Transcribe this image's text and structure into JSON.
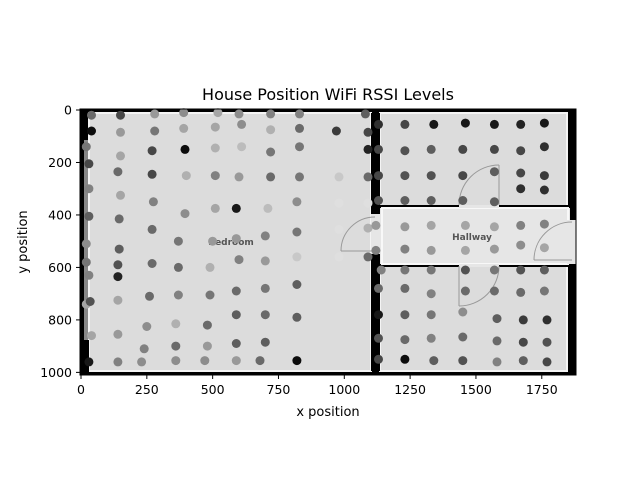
{
  "chart_data": {
    "type": "scatter",
    "title": "House Position WiFi RSSI Levels",
    "xlabel": "x position",
    "ylabel": "y position",
    "xlim": [
      0,
      1880
    ],
    "ylim": [
      1010,
      0
    ],
    "y_inverted": true,
    "xticks": [
      "0",
      "250",
      "500",
      "750",
      "1000",
      "1250",
      "1500",
      "1750"
    ],
    "yticks": [
      "0",
      "200",
      "400",
      "600",
      "800",
      "1000"
    ],
    "background_image": "house floor plan (grayscale)",
    "room_labels": [
      "Bedroom",
      "Hallway"
    ],
    "color_scale": "grayscale: darker = stronger signal (value 0 = black, 1 = white)",
    "points": [
      {
        "x": 40,
        "y": 20,
        "v": 0.45
      },
      {
        "x": 150,
        "y": 20,
        "v": 0.3
      },
      {
        "x": 280,
        "y": 15,
        "v": 0.65
      },
      {
        "x": 390,
        "y": 10,
        "v": 0.6
      },
      {
        "x": 520,
        "y": 10,
        "v": 0.7
      },
      {
        "x": 600,
        "y": 15,
        "v": 0.6
      },
      {
        "x": 720,
        "y": 15,
        "v": 0.55
      },
      {
        "x": 830,
        "y": 15,
        "v": 0.55
      },
      {
        "x": 1080,
        "y": 15,
        "v": 0.4
      },
      {
        "x": 40,
        "y": 80,
        "v": 0.05
      },
      {
        "x": 150,
        "y": 85,
        "v": 0.65
      },
      {
        "x": 280,
        "y": 80,
        "v": 0.5
      },
      {
        "x": 390,
        "y": 70,
        "v": 0.7
      },
      {
        "x": 510,
        "y": 65,
        "v": 0.7
      },
      {
        "x": 610,
        "y": 55,
        "v": 0.6
      },
      {
        "x": 720,
        "y": 75,
        "v": 0.75
      },
      {
        "x": 830,
        "y": 70,
        "v": 0.45
      },
      {
        "x": 970,
        "y": 80,
        "v": 0.25
      },
      {
        "x": 1090,
        "y": 85,
        "v": 0.3
      },
      {
        "x": 20,
        "y": 140,
        "v": 0.5
      },
      {
        "x": 150,
        "y": 175,
        "v": 0.7
      },
      {
        "x": 270,
        "y": 155,
        "v": 0.3
      },
      {
        "x": 395,
        "y": 150,
        "v": 0.05
      },
      {
        "x": 510,
        "y": 145,
        "v": 0.75
      },
      {
        "x": 610,
        "y": 140,
        "v": 0.8
      },
      {
        "x": 720,
        "y": 160,
        "v": 0.5
      },
      {
        "x": 830,
        "y": 140,
        "v": 0.5
      },
      {
        "x": 1090,
        "y": 150,
        "v": 0.15
      },
      {
        "x": 30,
        "y": 205,
        "v": 0.3
      },
      {
        "x": 140,
        "y": 235,
        "v": 0.45
      },
      {
        "x": 270,
        "y": 245,
        "v": 0.3
      },
      {
        "x": 400,
        "y": 250,
        "v": 0.75
      },
      {
        "x": 510,
        "y": 250,
        "v": 0.55
      },
      {
        "x": 600,
        "y": 255,
        "v": 0.65
      },
      {
        "x": 720,
        "y": 255,
        "v": 0.45
      },
      {
        "x": 830,
        "y": 255,
        "v": 0.5
      },
      {
        "x": 980,
        "y": 255,
        "v": 0.85
      },
      {
        "x": 1090,
        "y": 255,
        "v": 0.45
      },
      {
        "x": 30,
        "y": 300,
        "v": 0.55
      },
      {
        "x": 150,
        "y": 325,
        "v": 0.7
      },
      {
        "x": 275,
        "y": 350,
        "v": 0.55
      },
      {
        "x": 395,
        "y": 395,
        "v": 0.6
      },
      {
        "x": 510,
        "y": 375,
        "v": 0.7
      },
      {
        "x": 590,
        "y": 375,
        "v": 0.1
      },
      {
        "x": 710,
        "y": 375,
        "v": 0.8
      },
      {
        "x": 820,
        "y": 350,
        "v": 0.6
      },
      {
        "x": 980,
        "y": 355,
        "v": 0.95
      },
      {
        "x": 1090,
        "y": 355,
        "v": 0.95
      },
      {
        "x": 30,
        "y": 405,
        "v": 0.4
      },
      {
        "x": 145,
        "y": 415,
        "v": 0.45
      },
      {
        "x": 270,
        "y": 455,
        "v": 0.45
      },
      {
        "x": 370,
        "y": 500,
        "v": 0.5
      },
      {
        "x": 500,
        "y": 500,
        "v": 0.65
      },
      {
        "x": 590,
        "y": 490,
        "v": 0.65
      },
      {
        "x": 700,
        "y": 480,
        "v": 0.55
      },
      {
        "x": 820,
        "y": 465,
        "v": 0.5
      },
      {
        "x": 980,
        "y": 455,
        "v": 0.95
      },
      {
        "x": 1090,
        "y": 450,
        "v": 0.75
      },
      {
        "x": 20,
        "y": 510,
        "v": 0.6
      },
      {
        "x": 145,
        "y": 530,
        "v": 0.4
      },
      {
        "x": 270,
        "y": 585,
        "v": 0.45
      },
      {
        "x": 370,
        "y": 600,
        "v": 0.45
      },
      {
        "x": 490,
        "y": 600,
        "v": 0.75
      },
      {
        "x": 600,
        "y": 570,
        "v": 0.55
      },
      {
        "x": 700,
        "y": 575,
        "v": 0.65
      },
      {
        "x": 820,
        "y": 560,
        "v": 0.85
      },
      {
        "x": 980,
        "y": 560,
        "v": 0.95
      },
      {
        "x": 1090,
        "y": 560,
        "v": 0.45
      },
      {
        "x": 20,
        "y": 580,
        "v": 0.5
      },
      {
        "x": 30,
        "y": 630,
        "v": 0.55
      },
      {
        "x": 140,
        "y": 590,
        "v": 0.35
      },
      {
        "x": 140,
        "y": 635,
        "v": 0.15
      },
      {
        "x": 20,
        "y": 740,
        "v": 0.7
      },
      {
        "x": 35,
        "y": 730,
        "v": 0.35
      },
      {
        "x": 140,
        "y": 725,
        "v": 0.7
      },
      {
        "x": 260,
        "y": 710,
        "v": 0.45
      },
      {
        "x": 370,
        "y": 705,
        "v": 0.55
      },
      {
        "x": 490,
        "y": 705,
        "v": 0.5
      },
      {
        "x": 590,
        "y": 690,
        "v": 0.45
      },
      {
        "x": 700,
        "y": 680,
        "v": 0.5
      },
      {
        "x": 820,
        "y": 665,
        "v": 0.4
      },
      {
        "x": 40,
        "y": 860,
        "v": 0.7
      },
      {
        "x": 140,
        "y": 855,
        "v": 0.65
      },
      {
        "x": 250,
        "y": 825,
        "v": 0.6
      },
      {
        "x": 360,
        "y": 815,
        "v": 0.75
      },
      {
        "x": 480,
        "y": 820,
        "v": 0.45
      },
      {
        "x": 590,
        "y": 780,
        "v": 0.4
      },
      {
        "x": 700,
        "y": 780,
        "v": 0.45
      },
      {
        "x": 820,
        "y": 790,
        "v": 0.4
      },
      {
        "x": 30,
        "y": 960,
        "v": 0.1
      },
      {
        "x": 140,
        "y": 960,
        "v": 0.55
      },
      {
        "x": 230,
        "y": 960,
        "v": 0.6
      },
      {
        "x": 240,
        "y": 910,
        "v": 0.55
      },
      {
        "x": 360,
        "y": 955,
        "v": 0.6
      },
      {
        "x": 360,
        "y": 900,
        "v": 0.45
      },
      {
        "x": 470,
        "y": 955,
        "v": 0.6
      },
      {
        "x": 480,
        "y": 900,
        "v": 0.65
      },
      {
        "x": 590,
        "y": 955,
        "v": 0.65
      },
      {
        "x": 590,
        "y": 890,
        "v": 0.4
      },
      {
        "x": 680,
        "y": 955,
        "v": 0.45
      },
      {
        "x": 700,
        "y": 885,
        "v": 0.4
      },
      {
        "x": 820,
        "y": 955,
        "v": 0.05
      },
      {
        "x": 1130,
        "y": 55,
        "v": 0.2
      },
      {
        "x": 1230,
        "y": 55,
        "v": 0.3
      },
      {
        "x": 1340,
        "y": 55,
        "v": 0.1
      },
      {
        "x": 1460,
        "y": 50,
        "v": 0.1
      },
      {
        "x": 1570,
        "y": 55,
        "v": 0.1
      },
      {
        "x": 1670,
        "y": 55,
        "v": 0.15
      },
      {
        "x": 1760,
        "y": 50,
        "v": 0.1
      },
      {
        "x": 1130,
        "y": 150,
        "v": 0.3
      },
      {
        "x": 1230,
        "y": 155,
        "v": 0.35
      },
      {
        "x": 1330,
        "y": 150,
        "v": 0.4
      },
      {
        "x": 1450,
        "y": 150,
        "v": 0.3
      },
      {
        "x": 1570,
        "y": 150,
        "v": 0.3
      },
      {
        "x": 1670,
        "y": 155,
        "v": 0.3
      },
      {
        "x": 1760,
        "y": 140,
        "v": 0.2
      },
      {
        "x": 1130,
        "y": 250,
        "v": 0.3
      },
      {
        "x": 1230,
        "y": 250,
        "v": 0.35
      },
      {
        "x": 1330,
        "y": 250,
        "v": 0.35
      },
      {
        "x": 1450,
        "y": 250,
        "v": 0.3
      },
      {
        "x": 1570,
        "y": 235,
        "v": 0.4
      },
      {
        "x": 1670,
        "y": 240,
        "v": 0.3
      },
      {
        "x": 1670,
        "y": 300,
        "v": 0.2
      },
      {
        "x": 1760,
        "y": 250,
        "v": 0.25
      },
      {
        "x": 1760,
        "y": 305,
        "v": 0.2
      },
      {
        "x": 1130,
        "y": 345,
        "v": 0.35
      },
      {
        "x": 1230,
        "y": 345,
        "v": 0.4
      },
      {
        "x": 1330,
        "y": 345,
        "v": 0.4
      },
      {
        "x": 1450,
        "y": 345,
        "v": 0.4
      },
      {
        "x": 1570,
        "y": 350,
        "v": 0.4
      },
      {
        "x": 1120,
        "y": 440,
        "v": 0.65
      },
      {
        "x": 1230,
        "y": 445,
        "v": 0.65
      },
      {
        "x": 1330,
        "y": 440,
        "v": 0.7
      },
      {
        "x": 1460,
        "y": 440,
        "v": 0.7
      },
      {
        "x": 1570,
        "y": 445,
        "v": 0.7
      },
      {
        "x": 1670,
        "y": 440,
        "v": 0.55
      },
      {
        "x": 1760,
        "y": 435,
        "v": 0.55
      },
      {
        "x": 1120,
        "y": 535,
        "v": 0.55
      },
      {
        "x": 1230,
        "y": 530,
        "v": 0.55
      },
      {
        "x": 1330,
        "y": 535,
        "v": 0.65
      },
      {
        "x": 1460,
        "y": 535,
        "v": 0.7
      },
      {
        "x": 1570,
        "y": 530,
        "v": 0.65
      },
      {
        "x": 1670,
        "y": 515,
        "v": 0.6
      },
      {
        "x": 1760,
        "y": 525,
        "v": 0.7
      },
      {
        "x": 1140,
        "y": 610,
        "v": 0.55
      },
      {
        "x": 1230,
        "y": 610,
        "v": 0.5
      },
      {
        "x": 1330,
        "y": 610,
        "v": 0.5
      },
      {
        "x": 1460,
        "y": 610,
        "v": 0.35
      },
      {
        "x": 1570,
        "y": 610,
        "v": 0.5
      },
      {
        "x": 1670,
        "y": 610,
        "v": 0.35
      },
      {
        "x": 1760,
        "y": 610,
        "v": 0.4
      },
      {
        "x": 1130,
        "y": 680,
        "v": 0.45
      },
      {
        "x": 1230,
        "y": 680,
        "v": 0.45
      },
      {
        "x": 1330,
        "y": 700,
        "v": 0.55
      },
      {
        "x": 1460,
        "y": 690,
        "v": 0.45
      },
      {
        "x": 1570,
        "y": 690,
        "v": 0.45
      },
      {
        "x": 1670,
        "y": 695,
        "v": 0.45
      },
      {
        "x": 1760,
        "y": 690,
        "v": 0.5
      },
      {
        "x": 1130,
        "y": 780,
        "v": 0.1
      },
      {
        "x": 1230,
        "y": 780,
        "v": 0.4
      },
      {
        "x": 1330,
        "y": 780,
        "v": 0.5
      },
      {
        "x": 1450,
        "y": 770,
        "v": 0.6
      },
      {
        "x": 1580,
        "y": 795,
        "v": 0.4
      },
      {
        "x": 1680,
        "y": 800,
        "v": 0.25
      },
      {
        "x": 1770,
        "y": 800,
        "v": 0.2
      },
      {
        "x": 1130,
        "y": 870,
        "v": 0.35
      },
      {
        "x": 1230,
        "y": 875,
        "v": 0.45
      },
      {
        "x": 1330,
        "y": 870,
        "v": 0.55
      },
      {
        "x": 1450,
        "y": 865,
        "v": 0.45
      },
      {
        "x": 1580,
        "y": 880,
        "v": 0.45
      },
      {
        "x": 1680,
        "y": 885,
        "v": 0.3
      },
      {
        "x": 1770,
        "y": 885,
        "v": 0.35
      },
      {
        "x": 1130,
        "y": 950,
        "v": 0.3
      },
      {
        "x": 1230,
        "y": 950,
        "v": 0.05
      },
      {
        "x": 1340,
        "y": 955,
        "v": 0.4
      },
      {
        "x": 1450,
        "y": 955,
        "v": 0.35
      },
      {
        "x": 1580,
        "y": 960,
        "v": 0.55
      },
      {
        "x": 1680,
        "y": 955,
        "v": 0.4
      },
      {
        "x": 1770,
        "y": 960,
        "v": 0.3
      }
    ]
  }
}
